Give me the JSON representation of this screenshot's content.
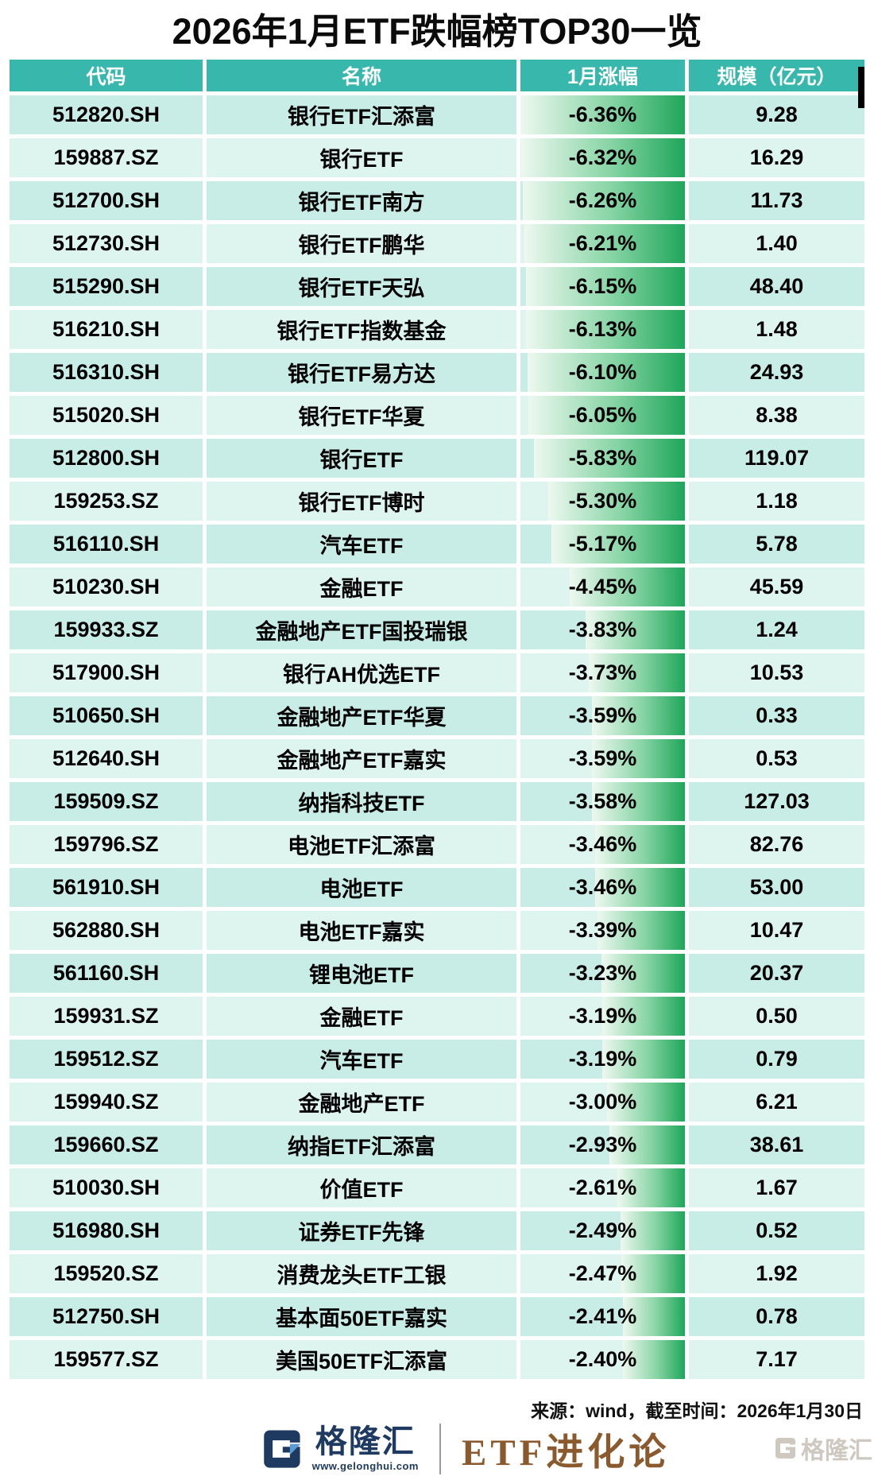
{
  "title": "2026年1月ETF跌幅榜TOP30一览",
  "table": {
    "headers": [
      "代码",
      "名称",
      "1月涨幅",
      "规模（亿元）"
    ],
    "rows": [
      [
        "512820.SH",
        "银行ETF汇添富",
        "-6.36%",
        "9.28"
      ],
      [
        "159887.SZ",
        "银行ETF",
        "-6.32%",
        "16.29"
      ],
      [
        "512700.SH",
        "银行ETF南方",
        "-6.26%",
        "11.73"
      ],
      [
        "512730.SH",
        "银行ETF鹏华",
        "-6.21%",
        "1.40"
      ],
      [
        "515290.SH",
        "银行ETF天弘",
        "-6.15%",
        "48.40"
      ],
      [
        "516210.SH",
        "银行ETF指数基金",
        "-6.13%",
        "1.48"
      ],
      [
        "516310.SH",
        "银行ETF易方达",
        "-6.10%",
        "24.93"
      ],
      [
        "515020.SH",
        "银行ETF华夏",
        "-6.05%",
        "8.38"
      ],
      [
        "512800.SH",
        "银行ETF",
        "-5.83%",
        "119.07"
      ],
      [
        "159253.SZ",
        "银行ETF博时",
        "-5.30%",
        "1.18"
      ],
      [
        "516110.SH",
        "汽车ETF",
        "-5.17%",
        "5.78"
      ],
      [
        "510230.SH",
        "金融ETF",
        "-4.45%",
        "45.59"
      ],
      [
        "159933.SZ",
        "金融地产ETF国投瑞银",
        "-3.83%",
        "1.24"
      ],
      [
        "517900.SH",
        "银行AH优选ETF",
        "-3.73%",
        "10.53"
      ],
      [
        "510650.SH",
        "金融地产ETF华夏",
        "-3.59%",
        "0.33"
      ],
      [
        "512640.SH",
        "金融地产ETF嘉实",
        "-3.59%",
        "0.53"
      ],
      [
        "159509.SZ",
        "纳指科技ETF",
        "-3.58%",
        "127.03"
      ],
      [
        "159796.SZ",
        "电池ETF汇添富",
        "-3.46%",
        "82.76"
      ],
      [
        "561910.SH",
        "电池ETF",
        "-3.46%",
        "53.00"
      ],
      [
        "562880.SH",
        "电池ETF嘉实",
        "-3.39%",
        "10.47"
      ],
      [
        "561160.SH",
        "锂电池ETF",
        "-3.23%",
        "20.37"
      ],
      [
        "159931.SZ",
        "金融ETF",
        "-3.19%",
        "0.50"
      ],
      [
        "159512.SZ",
        "汽车ETF",
        "-3.19%",
        "0.79"
      ],
      [
        "159940.SZ",
        "金融地产ETF",
        "-3.00%",
        "6.21"
      ],
      [
        "159660.SZ",
        "纳指ETF汇添富",
        "-2.93%",
        "38.61"
      ],
      [
        "510030.SH",
        "价值ETF",
        "-2.61%",
        "1.67"
      ],
      [
        "516980.SH",
        "证券ETF先锋",
        "-2.49%",
        "0.52"
      ],
      [
        "159520.SZ",
        "消费龙头ETF工银",
        "-2.47%",
        "1.92"
      ],
      [
        "512750.SH",
        "基本面50ETF嘉实",
        "-2.41%",
        "0.78"
      ],
      [
        "159577.SZ",
        "美国50ETF汇添富",
        "-2.40%",
        "7.17"
      ]
    ]
  },
  "footer": {
    "source": "来源：wind，截至时间：2026年1月30日",
    "brand_name": "格隆汇",
    "brand_url": "www.gelonghui.com",
    "column_name": "ETF进化论",
    "watermark": "格隆汇"
  },
  "colors": {
    "header_bg": "#38b8ad",
    "row_dark": "#c8ece6",
    "row_light": "#def5ef",
    "bar_light": "#edf8f0",
    "bar_mid": "#86d4a4",
    "bar_green": "#1fa65a",
    "brand_navy": "#1e3a60",
    "brand_blue": "#5b9bd5",
    "column_brown": "#8a5a2e",
    "watermark_gray": "#c9c3bb"
  },
  "chart_data": {
    "type": "table",
    "title": "2026年1月ETF跌幅榜TOP30一览",
    "columns": [
      "代码",
      "名称",
      "1月涨幅",
      "规模（亿元）"
    ],
    "bar_column": "1月涨幅",
    "bar_range": [
      -6.36,
      0
    ],
    "source": "来源：wind，截至时间：2026年1月30日",
    "rows": [
      [
        "512820.SH",
        "银行ETF汇添富",
        -6.36,
        9.28
      ],
      [
        "159887.SZ",
        "银行ETF",
        -6.32,
        16.29
      ],
      [
        "512700.SH",
        "银行ETF南方",
        -6.26,
        11.73
      ],
      [
        "512730.SH",
        "银行ETF鹏华",
        -6.21,
        1.4
      ],
      [
        "515290.SH",
        "银行ETF天弘",
        -6.15,
        48.4
      ],
      [
        "516210.SH",
        "银行ETF指数基金",
        -6.13,
        1.48
      ],
      [
        "516310.SH",
        "银行ETF易方达",
        -6.1,
        24.93
      ],
      [
        "515020.SH",
        "银行ETF华夏",
        -6.05,
        8.38
      ],
      [
        "512800.SH",
        "银行ETF",
        -5.83,
        119.07
      ],
      [
        "159253.SZ",
        "银行ETF博时",
        -5.3,
        1.18
      ],
      [
        "516110.SH",
        "汽车ETF",
        -5.17,
        5.78
      ],
      [
        "510230.SH",
        "金融ETF",
        -4.45,
        45.59
      ],
      [
        "159933.SZ",
        "金融地产ETF国投瑞银",
        -3.83,
        1.24
      ],
      [
        "517900.SH",
        "银行AH优选ETF",
        -3.73,
        10.53
      ],
      [
        "510650.SH",
        "金融地产ETF华夏",
        -3.59,
        0.33
      ],
      [
        "512640.SH",
        "金融地产ETF嘉实",
        -3.59,
        0.53
      ],
      [
        "159509.SZ",
        "纳指科技ETF",
        -3.58,
        127.03
      ],
      [
        "159796.SZ",
        "电池ETF汇添富",
        -3.46,
        82.76
      ],
      [
        "561910.SH",
        "电池ETF",
        -3.46,
        53.0
      ],
      [
        "562880.SH",
        "电池ETF嘉实",
        -3.39,
        10.47
      ],
      [
        "561160.SH",
        "锂电池ETF",
        -3.23,
        20.37
      ],
      [
        "159931.SZ",
        "金融ETF",
        -3.19,
        0.5
      ],
      [
        "159512.SZ",
        "汽车ETF",
        -3.19,
        0.79
      ],
      [
        "159940.SZ",
        "金融地产ETF",
        -3.0,
        6.21
      ],
      [
        "159660.SZ",
        "纳指ETF汇添富",
        -2.93,
        38.61
      ],
      [
        "510030.SH",
        "价值ETF",
        -2.61,
        1.67
      ],
      [
        "516980.SH",
        "证券ETF先锋",
        -2.49,
        0.52
      ],
      [
        "159520.SZ",
        "消费龙头ETF工银",
        -2.47,
        1.92
      ],
      [
        "512750.SH",
        "基本面50ETF嘉实",
        -2.41,
        0.78
      ],
      [
        "159577.SZ",
        "美国50ETF汇添富",
        -2.4,
        7.17
      ]
    ]
  }
}
